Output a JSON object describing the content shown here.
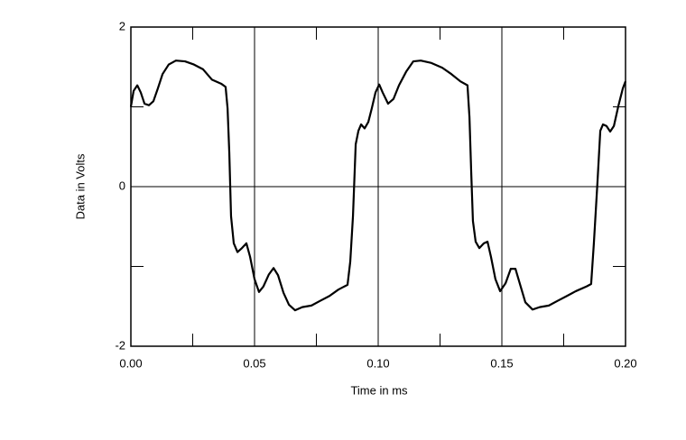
{
  "chart_data": {
    "type": "line",
    "xlabel": "Time in ms",
    "ylabel": "Data in Volts",
    "xlim": [
      0,
      0.2
    ],
    "ylim": [
      -2,
      2
    ],
    "xticks": [
      {
        "value": 0,
        "label": "0.00"
      },
      {
        "value": 0.05,
        "label": "0.05"
      },
      {
        "value": 0.1,
        "label": "0.10"
      },
      {
        "value": 0.15,
        "label": "0.15"
      },
      {
        "value": 0.2,
        "label": "0.20"
      }
    ],
    "yticks": [
      -2,
      0,
      2
    ],
    "xminor": [
      0.025,
      0.075,
      0.125,
      0.175
    ],
    "yminor": [
      -1,
      1
    ],
    "grid": true,
    "series": [
      {
        "color": "#000000",
        "x": [
          0,
          0.0011,
          0.0026,
          0.004,
          0.0055,
          0.0073,
          0.0091,
          0.0109,
          0.0128,
          0.0153,
          0.0182,
          0.0219,
          0.0255,
          0.0292,
          0.0328,
          0.0365,
          0.0383,
          0.0391,
          0.0398,
          0.0405,
          0.0416,
          0.0431,
          0.0449,
          0.0467,
          0.0482,
          0.05,
          0.0518,
          0.0536,
          0.0558,
          0.0577,
          0.0595,
          0.0617,
          0.0639,
          0.0664,
          0.0693,
          0.073,
          0.0766,
          0.0803,
          0.0839,
          0.0876,
          0.0887,
          0.0898,
          0.0909,
          0.092,
          0.0931,
          0.0945,
          0.096,
          0.0974,
          0.0989,
          0.1004,
          0.1018,
          0.104,
          0.1062,
          0.1084,
          0.1113,
          0.1142,
          0.1172,
          0.1215,
          0.1259,
          0.1296,
          0.1332,
          0.1361,
          0.1369,
          0.1376,
          0.1383,
          0.1394,
          0.1409,
          0.1427,
          0.1442,
          0.1456,
          0.1474,
          0.1493,
          0.1515,
          0.1536,
          0.1555,
          0.1573,
          0.1595,
          0.1624,
          0.1653,
          0.169,
          0.1726,
          0.1763,
          0.1799,
          0.1843,
          0.1861,
          0.1872,
          0.1887,
          0.1898,
          0.1909,
          0.1923,
          0.1938,
          0.1953,
          0.1971,
          0.1989,
          0.2
        ],
        "values": [
          1.0,
          1.2,
          1.27,
          1.18,
          1.04,
          1.02,
          1.07,
          1.23,
          1.41,
          1.53,
          1.58,
          1.57,
          1.53,
          1.47,
          1.34,
          1.29,
          1.25,
          0.98,
          0.42,
          -0.37,
          -0.71,
          -0.82,
          -0.77,
          -0.71,
          -0.88,
          -1.16,
          -1.32,
          -1.25,
          -1.1,
          -1.02,
          -1.11,
          -1.33,
          -1.48,
          -1.55,
          -1.51,
          -1.49,
          -1.43,
          -1.37,
          -1.29,
          -1.23,
          -0.94,
          -0.37,
          0.53,
          0.7,
          0.78,
          0.73,
          0.81,
          0.98,
          1.18,
          1.28,
          1.18,
          1.04,
          1.1,
          1.27,
          1.44,
          1.57,
          1.58,
          1.55,
          1.49,
          1.41,
          1.32,
          1.27,
          0.87,
          0.19,
          -0.43,
          -0.69,
          -0.77,
          -0.71,
          -0.69,
          -0.88,
          -1.16,
          -1.31,
          -1.21,
          -1.03,
          -1.03,
          -1.22,
          -1.45,
          -1.54,
          -1.51,
          -1.49,
          -1.43,
          -1.37,
          -1.31,
          -1.25,
          -1.22,
          -0.71,
          0.08,
          0.7,
          0.78,
          0.76,
          0.69,
          0.76,
          1.01,
          1.23,
          1.32
        ]
      }
    ]
  }
}
